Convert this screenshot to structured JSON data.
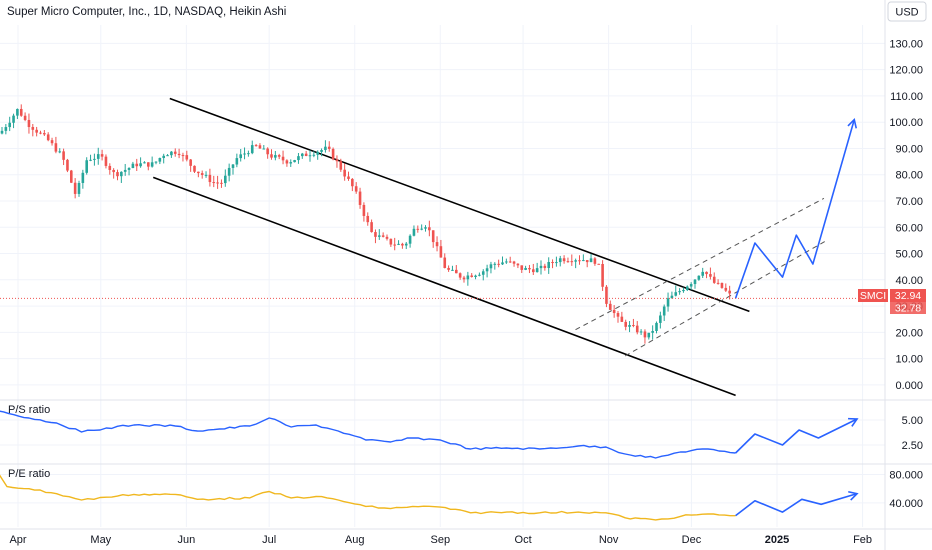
{
  "header": {
    "title": "Super Micro Computer, Inc., 1D, NASDAQ, Heikin Ashi",
    "currency_button": "USD"
  },
  "price_tags": {
    "symbol": "SMCI",
    "last": "32.94",
    "second": "32.78"
  },
  "colors": {
    "up": "#26a69a",
    "down": "#ef5350",
    "projection": "#2962ff",
    "ps_line": "#2962ff",
    "pe_line": "#f0b71f",
    "channel": "#000000",
    "grid": "#f0f3fa"
  },
  "chart_data": [
    {
      "type": "candlestick",
      "pane": "price",
      "title": "Super Micro Computer, Inc., 1D, NASDAQ, Heikin Ashi",
      "x_tick_labels": [
        "Apr",
        "May",
        "Jun",
        "Jul",
        "Aug",
        "Sep",
        "Oct",
        "Nov",
        "Dec",
        "2025",
        "Feb"
      ],
      "y_tick_labels": [
        "0.000",
        "10.00",
        "20.00",
        "30.00",
        "40.00",
        "50.00",
        "60.00",
        "70.00",
        "80.00",
        "90.00",
        "100.00",
        "110.00",
        "120.00",
        "130.00"
      ],
      "ylim": [
        -5,
        137
      ],
      "grid": true,
      "last_price": 32.94,
      "candle_anchors": [
        [
          "2024-03-25",
          95
        ],
        [
          "2024-04-01",
          105
        ],
        [
          "2024-04-04",
          100
        ],
        [
          "2024-04-12",
          93
        ],
        [
          "2024-04-17",
          87
        ],
        [
          "2024-04-22",
          72
        ],
        [
          "2024-04-26",
          86
        ],
        [
          "2024-05-01",
          87
        ],
        [
          "2024-05-06",
          80
        ],
        [
          "2024-05-14",
          84
        ],
        [
          "2024-05-20",
          84
        ],
        [
          "2024-05-24",
          88
        ],
        [
          "2024-05-29",
          89
        ],
        [
          "2024-06-04",
          82
        ],
        [
          "2024-06-11",
          77
        ],
        [
          "2024-06-14",
          77
        ],
        [
          "2024-06-19",
          86
        ],
        [
          "2024-06-26",
          91
        ],
        [
          "2024-07-02",
          87
        ],
        [
          "2024-07-08",
          85
        ],
        [
          "2024-07-15",
          88
        ],
        [
          "2024-07-22",
          90
        ],
        [
          "2024-07-26",
          84
        ],
        [
          "2024-08-01",
          74
        ],
        [
          "2024-08-07",
          58
        ],
        [
          "2024-08-14",
          54
        ],
        [
          "2024-08-19",
          53
        ],
        [
          "2024-08-23",
          60
        ],
        [
          "2024-08-27",
          61
        ],
        [
          "2024-09-03",
          44
        ],
        [
          "2024-09-09",
          41
        ],
        [
          "2024-09-16",
          43
        ],
        [
          "2024-09-20",
          46
        ],
        [
          "2024-09-25",
          47
        ],
        [
          "2024-10-01",
          44
        ],
        [
          "2024-10-07",
          44
        ],
        [
          "2024-10-14",
          48
        ],
        [
          "2024-10-21",
          48
        ],
        [
          "2024-10-28",
          47
        ],
        [
          "2024-10-31",
          32
        ],
        [
          "2024-11-05",
          24
        ],
        [
          "2024-11-11",
          21
        ],
        [
          "2024-11-15",
          18
        ],
        [
          "2024-11-19",
          24
        ],
        [
          "2024-11-22",
          32
        ],
        [
          "2024-11-27",
          36
        ],
        [
          "2024-12-02",
          40
        ],
        [
          "2024-12-05",
          44
        ],
        [
          "2024-12-09",
          39
        ],
        [
          "2024-12-12",
          37
        ],
        [
          "2024-12-16",
          33
        ]
      ],
      "annotations": {
        "descending_channel": {
          "upper": [
            [
              "2024-05-26",
              109
            ],
            [
              "2024-12-22",
              28
            ]
          ],
          "lower": [
            [
              "2024-05-20",
              79
            ],
            [
              "2024-12-17",
              -4
            ]
          ]
        },
        "ascending_channel_dashed": {
          "upper": [
            [
              "2024-10-20",
              21
            ],
            [
              "2025-01-18",
              71
            ]
          ],
          "lower": [
            [
              "2024-11-07",
              11
            ],
            [
              "2025-01-19",
              55
            ]
          ]
        },
        "projection_path": [
          [
            "2024-12-17",
            33
          ],
          [
            "2024-12-24",
            54
          ],
          [
            "2025-01-03",
            41
          ],
          [
            "2025-01-08",
            57
          ],
          [
            "2025-01-14",
            46
          ],
          [
            "2025-01-29",
            101
          ]
        ]
      }
    },
    {
      "type": "line",
      "pane": "ps_ratio",
      "label": "P/S ratio",
      "y_tick_labels": [
        "5.00",
        "2.50"
      ],
      "ylim": [
        0.8,
        6.8
      ],
      "series": [
        {
          "name": "P/S ratio",
          "points": [
            [
              "2024-03-25",
              5.9
            ],
            [
              "2024-04-05",
              5.2
            ],
            [
              "2024-04-15",
              4.7
            ],
            [
              "2024-04-24",
              3.8
            ],
            [
              "2024-05-03",
              4.2
            ],
            [
              "2024-05-13",
              4.5
            ],
            [
              "2024-05-28",
              4.4
            ],
            [
              "2024-06-05",
              3.9
            ],
            [
              "2024-06-13",
              4.1
            ],
            [
              "2024-06-24",
              4.4
            ],
            [
              "2024-07-01",
              5.2
            ],
            [
              "2024-07-09",
              4.3
            ],
            [
              "2024-07-18",
              4.5
            ],
            [
              "2024-07-26",
              3.9
            ],
            [
              "2024-08-05",
              3.0
            ],
            [
              "2024-08-14",
              2.8
            ],
            [
              "2024-08-22",
              3.2
            ],
            [
              "2024-09-01",
              3.0
            ],
            [
              "2024-09-12",
              2.1
            ],
            [
              "2024-09-25",
              2.2
            ],
            [
              "2024-10-07",
              2.1
            ],
            [
              "2024-10-21",
              2.4
            ],
            [
              "2024-10-31",
              2.3
            ],
            [
              "2024-11-07",
              1.6
            ],
            [
              "2024-11-18",
              1.2
            ],
            [
              "2024-11-27",
              1.8
            ],
            [
              "2024-12-05",
              2.1
            ],
            [
              "2024-12-11",
              1.9
            ],
            [
              "2024-12-17",
              1.7
            ]
          ]
        }
      ],
      "projection_path": [
        [
          "2024-12-17",
          1.7
        ],
        [
          "2024-12-24",
          3.6
        ],
        [
          "2025-01-03",
          2.5
        ],
        [
          "2025-01-09",
          4.0
        ],
        [
          "2025-01-16",
          3.2
        ],
        [
          "2025-01-30",
          5.1
        ]
      ]
    },
    {
      "type": "line",
      "pane": "pe_ratio",
      "label": "P/E ratio",
      "y_tick_labels": [
        "80.000",
        "40.000"
      ],
      "ylim": [
        6,
        92
      ],
      "series": [
        {
          "name": "P/E ratio",
          "points": [
            [
              "2024-03-25",
              81
            ],
            [
              "2024-03-28",
              63
            ],
            [
              "2024-04-05",
              60
            ],
            [
              "2024-04-15",
              53
            ],
            [
              "2024-04-24",
              44
            ],
            [
              "2024-05-03",
              48
            ],
            [
              "2024-05-13",
              52
            ],
            [
              "2024-05-28",
              52
            ],
            [
              "2024-06-05",
              45
            ],
            [
              "2024-06-13",
              46
            ],
            [
              "2024-06-24",
              47
            ],
            [
              "2024-07-01",
              56
            ],
            [
              "2024-07-09",
              47
            ],
            [
              "2024-07-18",
              49
            ],
            [
              "2024-07-26",
              44
            ],
            [
              "2024-08-05",
              35
            ],
            [
              "2024-08-14",
              32
            ],
            [
              "2024-08-22",
              35
            ],
            [
              "2024-09-01",
              34
            ],
            [
              "2024-09-12",
              26
            ],
            [
              "2024-09-25",
              27
            ],
            [
              "2024-10-07",
              26
            ],
            [
              "2024-10-21",
              27
            ],
            [
              "2024-10-31",
              26
            ],
            [
              "2024-11-07",
              19
            ],
            [
              "2024-11-18",
              16
            ],
            [
              "2024-11-27",
              21
            ],
            [
              "2024-12-05",
              24
            ],
            [
              "2024-12-11",
              23
            ],
            [
              "2024-12-17",
              22
            ]
          ]
        }
      ],
      "projection_path": [
        [
          "2024-12-17",
          22
        ],
        [
          "2024-12-24",
          43
        ],
        [
          "2025-01-03",
          27
        ],
        [
          "2025-01-10",
          45
        ],
        [
          "2025-01-17",
          38
        ],
        [
          "2025-01-30",
          53
        ]
      ]
    }
  ]
}
